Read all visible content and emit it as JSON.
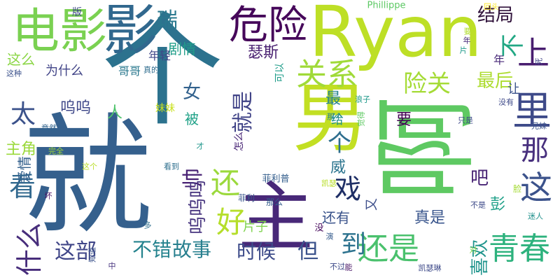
{
  "word_cloud": {
    "words": [
      {
        "text": "就",
        "color": "#35608d"
      },
      {
        "text": "个",
        "color": "#2c728e"
      },
      {
        "text": "啊",
        "color": "#5ec962"
      },
      {
        "text": "男",
        "color": "#c2df23"
      },
      {
        "text": "主",
        "color": "#482878"
      },
      {
        "text": "电影",
        "color": "#7ad151"
      },
      {
        "text": "影",
        "color": "#31688e"
      },
      {
        "text": "Ryan",
        "color": "#bddf26"
      },
      {
        "text": "危险",
        "color": "#46075a"
      },
      {
        "text": "上",
        "color": "#481d6f"
      },
      {
        "text": "里",
        "color": "#3e4a89"
      },
      {
        "text": "那",
        "color": "#472f7d"
      },
      {
        "text": "这",
        "color": "#3b528b"
      },
      {
        "text": "不",
        "color": "#22a884"
      },
      {
        "text": "关系",
        "color": "#a0da39"
      },
      {
        "text": "险关",
        "color": "#a5db36"
      },
      {
        "text": "最后",
        "color": "#addc30"
      },
      {
        "text": "结局",
        "color": "#30123b"
      },
      {
        "text": "瑞",
        "color": "#2a788e"
      },
      {
        "text": "剧情",
        "color": "#1f9e89"
      },
      {
        "text": "瑟斯",
        "color": "#481f70"
      },
      {
        "text": "还是",
        "color": "#4ac16d"
      },
      {
        "text": "青春",
        "color": "#2db27d"
      },
      {
        "text": "好",
        "color": "#b5de2b"
      },
      {
        "text": "还",
        "color": "#9bd93c"
      },
      {
        "text": "戏",
        "color": "#1f2f66"
      },
      {
        "text": "看",
        "color": "#31688e"
      },
      {
        "text": "太",
        "color": "#3b528b"
      },
      {
        "text": "什么",
        "color": "#472d7b"
      },
      {
        "text": "这部",
        "color": "#404688"
      },
      {
        "text": "不错",
        "color": "#25838e"
      },
      {
        "text": "故事",
        "color": "#277f8e"
      },
      {
        "text": "时候",
        "color": "#3e4c8a"
      },
      {
        "text": "但",
        "color": "#3b528b"
      },
      {
        "text": "到",
        "color": "#2c728e"
      },
      {
        "text": "喜欢",
        "color": "#1f948c"
      },
      {
        "text": "就是",
        "color": "#404387"
      },
      {
        "text": "女",
        "color": "#33628d"
      },
      {
        "text": "最",
        "color": "#26828e"
      },
      {
        "text": "被",
        "color": "#1fa187"
      },
      {
        "text": "呜呜",
        "color": "#3f4889"
      },
      {
        "text": "主角",
        "color": "#9bd93c"
      },
      {
        "text": "爱情",
        "color": "#34618d"
      },
      {
        "text": "帅",
        "color": "#482173"
      },
      {
        "text": "呜呜呜",
        "color": "#46337e"
      },
      {
        "text": "吧",
        "color": "#482475"
      },
      {
        "text": "个",
        "color": "#2e6e8e"
      },
      {
        "text": "人",
        "color": "#4ec36b"
      },
      {
        "text": "这么",
        "color": "#8bd646"
      },
      {
        "text": "年轻",
        "color": "#3f4788"
      },
      {
        "text": "哥哥",
        "color": "#2a788e"
      },
      {
        "text": "为什么",
        "color": "#414487"
      },
      {
        "text": "要",
        "color": "#440154"
      },
      {
        "text": "让",
        "color": "#3b528b"
      },
      {
        "text": "威",
        "color": "#2b748e"
      },
      {
        "text": "彭",
        "color": "#1fa088"
      },
      {
        "text": "年",
        "color": "#482878"
      },
      {
        "text": "真是",
        "color": "#39558c"
      },
      {
        "text": "还有",
        "color": "#3a538b"
      },
      {
        "text": "片子",
        "color": "#7fd34e"
      },
      {
        "text": "又",
        "color": "#3d4e8a"
      },
      {
        "text": "给",
        "color": "#20928c"
      },
      {
        "text": "妹妹",
        "color": "#cae11f"
      },
      {
        "text": "版",
        "color": "#3f4889"
      },
      {
        "text": "Phillippe",
        "color": "#5cc863"
      },
      {
        "text": "回头",
        "color": "#fde725"
      },
      {
        "text": "可以",
        "color": "#1e9c89"
      },
      {
        "text": "真的",
        "color": "#2f6c8e"
      },
      {
        "text": "这种",
        "color": "#3b518b"
      },
      {
        "text": "竟然",
        "color": "#32648e"
      },
      {
        "text": "完全",
        "color": "#a2da37"
      },
      {
        "text": "这个",
        "color": "#bade28"
      },
      {
        "text": "怎么",
        "color": "#482576"
      },
      {
        "text": "那个",
        "color": "#26828e"
      },
      {
        "text": "觉得",
        "color": "#5ec962"
      },
      {
        "text": "浪子",
        "color": "#1f998a"
      },
      {
        "text": "只是",
        "color": "#3e4989"
      },
      {
        "text": "没有",
        "color": "#3e4989"
      },
      {
        "text": "兄妹",
        "color": "#3b528b"
      },
      {
        "text": "迷人",
        "color": "#21918c"
      },
      {
        "text": "不是",
        "color": "#3e4a89"
      },
      {
        "text": "菲利普",
        "color": "#355f8d"
      },
      {
        "text": "凯瑟",
        "color": "#b8de29"
      },
      {
        "text": "菲利",
        "color": "#39568c"
      },
      {
        "text": "那么",
        "color": "#355e8d"
      },
      {
        "text": "看到",
        "color": "#2e6f8e"
      },
      {
        "text": "才",
        "color": "#1f968b"
      },
      {
        "text": "坏",
        "color": "#470e61"
      },
      {
        "text": "多",
        "color": "#2e6e8e"
      },
      {
        "text": "没",
        "color": "#46085c"
      },
      {
        "text": "演",
        "color": "#365c8d"
      },
      {
        "text": "不过",
        "color": "#3e4a89"
      },
      {
        "text": "能",
        "color": "#471365"
      },
      {
        "text": "知道",
        "color": "#3b528b"
      },
      {
        "text": "中",
        "color": "#46337e"
      },
      {
        "text": "凯瑟琳",
        "color": "#3e4a89"
      },
      {
        "text": "对",
        "color": "#7fd34e"
      },
      {
        "text": "死",
        "color": "#414487"
      },
      {
        "text": "脸",
        "color": "#a5db36"
      },
      {
        "text": "要",
        "color": "#b0dd2f"
      },
      {
        "text": "年",
        "color": "#472a7a"
      },
      {
        "text": "片",
        "color": "#1f9a8a"
      }
    ]
  }
}
